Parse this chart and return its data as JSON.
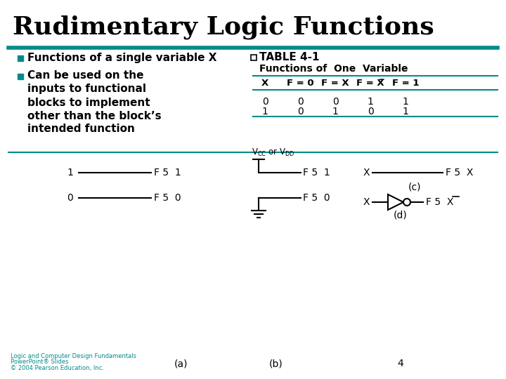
{
  "title": "Rudimentary Logic Functions",
  "title_color": "#000000",
  "title_fontsize": 26,
  "bg_color": "#FFFFFF",
  "teal_color": "#008B8B",
  "bullet1": "Functions of a single variable X",
  "bullet2_lines": [
    "Can be used on the",
    "inputs to functional",
    "blocks to implement",
    "other than the block’s",
    "intended function"
  ],
  "table_title": "TABLE 4-1",
  "table_subtitle": "Functions of  One  Variable",
  "table_row1": [
    "0",
    "0",
    "0",
    "1",
    "1"
  ],
  "table_row2": [
    "1",
    "0",
    "1",
    "0",
    "1"
  ],
  "footer_text1": "Logic and Computer Design Fundamentals",
  "footer_text2": "PowerPoint® Slides",
  "footer_text3": "© 2004 Pearson Education, Inc.",
  "footer_color": "#008B8B",
  "page_number": "4"
}
